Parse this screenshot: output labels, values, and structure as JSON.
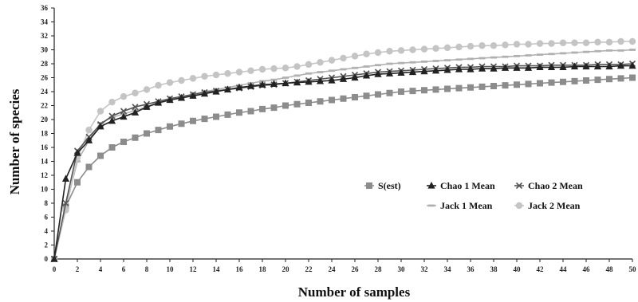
{
  "chart_data": {
    "type": "line",
    "xlabel": "Number of samples",
    "ylabel": "Number of species",
    "xlim": [
      0,
      50
    ],
    "ylim": [
      0,
      36
    ],
    "xticks": [
      0,
      2,
      4,
      6,
      8,
      10,
      12,
      14,
      16,
      18,
      20,
      22,
      24,
      26,
      28,
      30,
      32,
      34,
      36,
      38,
      40,
      42,
      44,
      46,
      48,
      50
    ],
    "yticks": [
      0,
      2,
      4,
      6,
      8,
      10,
      12,
      14,
      16,
      18,
      20,
      22,
      24,
      26,
      28,
      30,
      32,
      34,
      36
    ],
    "grid": false,
    "legend_position": "lower-right",
    "series": [
      {
        "name": "S(est)",
        "color": "#8c8c8c",
        "marker": "square",
        "values": [
          0,
          7.5,
          11,
          13.2,
          14.8,
          16,
          16.8,
          17.4,
          18,
          18.5,
          19,
          19.4,
          19.8,
          20.1,
          20.4,
          20.7,
          21,
          21.2,
          21.5,
          21.7,
          22,
          22.2,
          22.4,
          22.6,
          22.8,
          23,
          23.2,
          23.4,
          23.6,
          23.8,
          24,
          24.1,
          24.2,
          24.3,
          24.4,
          24.5,
          24.6,
          24.7,
          24.8,
          24.9,
          25,
          25.1,
          25.2,
          25.3,
          25.4,
          25.5,
          25.6,
          25.7,
          25.8,
          25.9,
          26
        ]
      },
      {
        "name": "Chao 1 Mean",
        "color": "#222222",
        "marker": "triangle",
        "values": [
          0,
          11.5,
          15.2,
          17,
          19,
          19.8,
          20.4,
          21,
          21.8,
          22.4,
          22.8,
          23.1,
          23.4,
          23.7,
          24,
          24.3,
          24.6,
          24.8,
          25,
          25.1,
          25.2,
          25.3,
          25.4,
          25.5,
          25.6,
          25.8,
          26,
          26.3,
          26.5,
          26.6,
          26.7,
          26.8,
          26.9,
          27,
          27.1,
          27.2,
          27.2,
          27.3,
          27.3,
          27.4,
          27.4,
          27.4,
          27.5,
          27.5,
          27.5,
          27.6,
          27.6,
          27.6,
          27.6,
          27.7,
          27.7
        ]
      },
      {
        "name": "Chao 2 Mean",
        "color": "#555555",
        "marker": "cross",
        "values": [
          0,
          8,
          15.5,
          17.5,
          19.3,
          20.5,
          21.2,
          21.8,
          22.2,
          22.6,
          23,
          23.3,
          23.6,
          23.9,
          24.1,
          24.3,
          24.5,
          24.7,
          24.9,
          25,
          25.2,
          25.4,
          25.6,
          25.8,
          26,
          26.2,
          26.4,
          26.6,
          26.8,
          26.9,
          27,
          27.1,
          27.2,
          27.3,
          27.4,
          27.5,
          27.5,
          27.6,
          27.6,
          27.6,
          27.7,
          27.7,
          27.7,
          27.8,
          27.8,
          27.8,
          27.8,
          27.9,
          27.9,
          27.9,
          28
        ]
      },
      {
        "name": "Jack 1 Mean",
        "color": "#b0b0b0",
        "marker": "dash",
        "values": [
          0,
          7.5,
          14,
          17,
          19.5,
          20.3,
          20.8,
          21.3,
          21.8,
          22.3,
          22.8,
          23.2,
          23.6,
          24,
          24.3,
          24.6,
          24.9,
          25.2,
          25.5,
          25.7,
          26,
          26.3,
          26.6,
          26.8,
          27,
          27.2,
          27.4,
          27.6,
          27.8,
          28,
          28.1,
          28.2,
          28.3,
          28.4,
          28.5,
          28.6,
          28.7,
          28.8,
          28.9,
          29,
          29.1,
          29.2,
          29.3,
          29.4,
          29.5,
          29.6,
          29.7,
          29.8,
          29.9,
          29.9,
          30
        ]
      },
      {
        "name": "Jack 2 Mean",
        "color": "#c4c4c4",
        "marker": "circle",
        "values": [
          0,
          7,
          14.5,
          18.5,
          21.2,
          22.5,
          23.3,
          23.8,
          24.3,
          24.9,
          25.3,
          25.6,
          25.9,
          26.2,
          26.4,
          26.6,
          26.8,
          27,
          27.2,
          27.3,
          27.4,
          27.6,
          27.9,
          28.2,
          28.5,
          28.8,
          29.1,
          29.4,
          29.6,
          29.8,
          29.9,
          30,
          30.1,
          30.2,
          30.3,
          30.4,
          30.5,
          30.6,
          30.6,
          30.7,
          30.8,
          30.8,
          30.9,
          30.9,
          31,
          31,
          31,
          31.1,
          31.1,
          31.2,
          31.2
        ]
      }
    ]
  }
}
